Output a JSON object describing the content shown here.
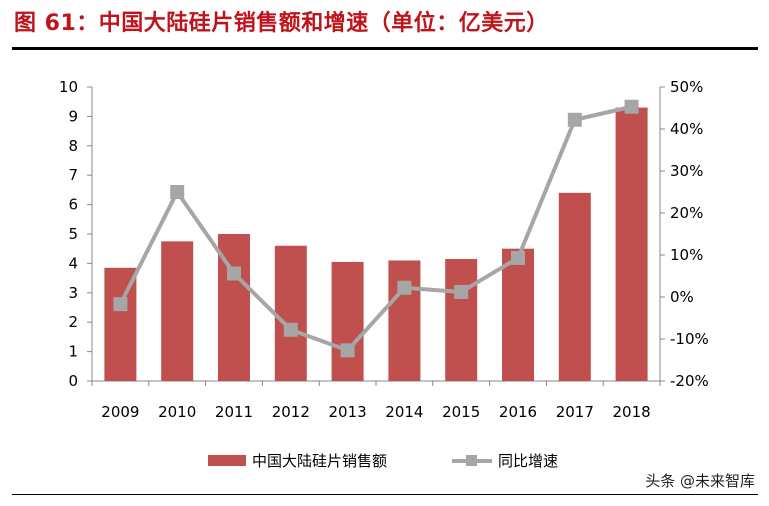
{
  "title": "图 61：中国大陆硅片销售额和增速（单位：亿美元）",
  "watermark": "头条 @未来智库",
  "chart_data": {
    "type": "bar+line",
    "title": "图 61：中国大陆硅片销售额和增速（单位：亿美元）",
    "categories": [
      "2009",
      "2010",
      "2011",
      "2012",
      "2013",
      "2014",
      "2015",
      "2016",
      "2017",
      "2018"
    ],
    "series": [
      {
        "name": "中国大陆硅片销售额",
        "type": "bar",
        "axis": "left",
        "color": "#c0504d",
        "values": [
          3.85,
          4.75,
          5.0,
          4.6,
          4.05,
          4.1,
          4.15,
          4.5,
          6.4,
          9.3
        ]
      },
      {
        "name": "同比增速",
        "type": "line",
        "axis": "right",
        "color": "#a6a6a6",
        "values": [
          -1.7,
          25.0,
          5.6,
          -7.8,
          -12.7,
          2.2,
          1.2,
          9.3,
          42.2,
          45.3
        ]
      }
    ],
    "left_axis": {
      "ylim": [
        0,
        10
      ],
      "ticks": [
        "0",
        "1",
        "2",
        "3",
        "4",
        "5",
        "6",
        "7",
        "8",
        "9",
        "10"
      ]
    },
    "right_axis": {
      "ylim": [
        -20,
        50
      ],
      "ticks": [
        "-20%",
        "-10%",
        "0%",
        "10%",
        "20%",
        "30%",
        "40%",
        "50%"
      ]
    },
    "grid": false,
    "legend": "bottom"
  }
}
